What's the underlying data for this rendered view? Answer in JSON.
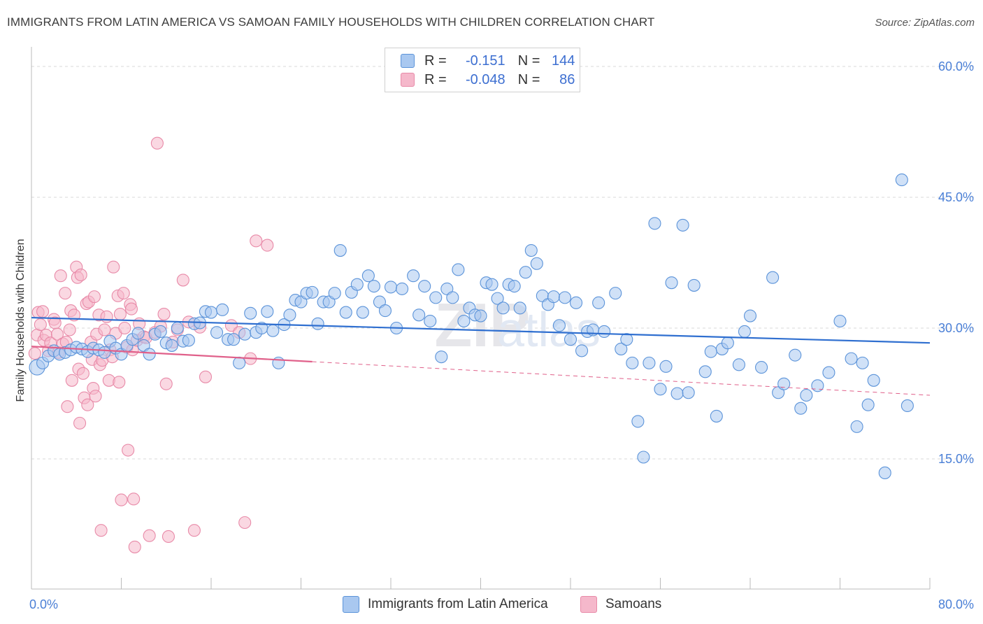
{
  "title": "IMMIGRANTS FROM LATIN AMERICA VS SAMOAN FAMILY HOUSEHOLDS WITH CHILDREN CORRELATION CHART",
  "source": "Source: ZipAtlas.com",
  "watermark": "ZIPatlas",
  "legend": {
    "rows": [
      {
        "r_label": "R =",
        "r_value": "-0.151",
        "n_label": "N =",
        "n_value": "144"
      },
      {
        "r_label": "R =",
        "r_value": "-0.048",
        "n_label": "N =",
        "n_value": "86"
      }
    ]
  },
  "bottom_legend": [
    "Immigrants from Latin America",
    "Samoans"
  ],
  "colors": {
    "blue_fill": "#a9c8f0",
    "blue_stroke": "#5b93d9",
    "blue_line": "#2f6fd0",
    "pink_fill": "#f5b8cb",
    "pink_stroke": "#e88aa8",
    "pink_line": "#e0608a",
    "tick_text": "#4a7fd6",
    "grid": "#d8d8d8"
  },
  "chart_data": {
    "type": "scatter",
    "ylabel": "Family Households with Children",
    "xlim": [
      0,
      80
    ],
    "ylim": [
      0,
      60
    ],
    "x_ticks": [
      "0.0%",
      "80.0%"
    ],
    "y_ticks": [
      {
        "value": 60,
        "label": "60.0%"
      },
      {
        "value": 45,
        "label": "45.0%"
      },
      {
        "value": 30,
        "label": "30.0%"
      },
      {
        "value": 15,
        "label": "15.0%"
      }
    ],
    "series": [
      {
        "name": "Immigrants from Latin America",
        "color": "blue",
        "trend": {
          "x0": 0,
          "y0": 31.2,
          "x1": 80,
          "y1": 28.3,
          "solid_to": 80
        },
        "points": [
          [
            0.5,
            25.5
          ],
          [
            1,
            26
          ],
          [
            1.5,
            26.8
          ],
          [
            2,
            27.4
          ],
          [
            2.5,
            27
          ],
          [
            3,
            27.2
          ],
          [
            3.5,
            27.5
          ],
          [
            4,
            27.8
          ],
          [
            4.5,
            27.6
          ],
          [
            5,
            27.3
          ],
          [
            5.5,
            27.7
          ],
          [
            6,
            27.5
          ],
          [
            6.5,
            27.2
          ],
          [
            7,
            28.5
          ],
          [
            7.5,
            27.7
          ],
          [
            8,
            27
          ],
          [
            8.5,
            28
          ],
          [
            9,
            28.7
          ],
          [
            9.5,
            29.4
          ],
          [
            10,
            28
          ],
          [
            10.5,
            27
          ],
          [
            11,
            29.3
          ],
          [
            11.5,
            29.6
          ],
          [
            12,
            28.3
          ],
          [
            12.5,
            28
          ],
          [
            13,
            30
          ],
          [
            13.5,
            28.5
          ],
          [
            14,
            28.6
          ],
          [
            14.5,
            30.5
          ],
          [
            15,
            30.6
          ],
          [
            15.5,
            31.9
          ],
          [
            16,
            31.8
          ],
          [
            16.5,
            29.5
          ],
          [
            17,
            32.1
          ],
          [
            17.5,
            28.7
          ],
          [
            18,
            28.7
          ],
          [
            18.5,
            26
          ],
          [
            19,
            29.3
          ],
          [
            19.5,
            31.7
          ],
          [
            20,
            29.5
          ],
          [
            20.5,
            30
          ],
          [
            21,
            31.9
          ],
          [
            21.5,
            29.7
          ],
          [
            22,
            26
          ],
          [
            22.5,
            30.4
          ],
          [
            23,
            31.5
          ],
          [
            23.5,
            33.2
          ],
          [
            24,
            33
          ],
          [
            24.5,
            34
          ],
          [
            25,
            34.1
          ],
          [
            25.5,
            30.5
          ],
          [
            26,
            33
          ],
          [
            26.5,
            33
          ],
          [
            27,
            34
          ],
          [
            27.5,
            38.9
          ],
          [
            28,
            31.8
          ],
          [
            28.5,
            34.1
          ],
          [
            29,
            35
          ],
          [
            29.5,
            31.8
          ],
          [
            30,
            36
          ],
          [
            30.5,
            34.8
          ],
          [
            31,
            33
          ],
          [
            31.5,
            32
          ],
          [
            32,
            34.7
          ],
          [
            32.5,
            30
          ],
          [
            33,
            34.5
          ],
          [
            34,
            36
          ],
          [
            34.5,
            31.5
          ],
          [
            35,
            34.8
          ],
          [
            35.5,
            30.8
          ],
          [
            36,
            33.5
          ],
          [
            36.5,
            26.7
          ],
          [
            37,
            34.5
          ],
          [
            37.5,
            33.5
          ],
          [
            38,
            36.7
          ],
          [
            38.5,
            30.8
          ],
          [
            39,
            32.3
          ],
          [
            39.5,
            31.5
          ],
          [
            40,
            31.4
          ],
          [
            40.5,
            35.2
          ],
          [
            41,
            35
          ],
          [
            41.5,
            33.4
          ],
          [
            42,
            32.3
          ],
          [
            42.5,
            35
          ],
          [
            43,
            34.8
          ],
          [
            43.5,
            32.3
          ],
          [
            44,
            36.4
          ],
          [
            44.5,
            38.9
          ],
          [
            45,
            37.4
          ],
          [
            45.5,
            33.7
          ],
          [
            46,
            32.7
          ],
          [
            46.5,
            33.6
          ],
          [
            47,
            30.3
          ],
          [
            47.5,
            33.5
          ],
          [
            48,
            28.7
          ],
          [
            48.5,
            32.9
          ],
          [
            49,
            27.4
          ],
          [
            49.5,
            29.6
          ],
          [
            50,
            29.8
          ],
          [
            50.5,
            32.9
          ],
          [
            51,
            29.6
          ],
          [
            52,
            34
          ],
          [
            52.5,
            27.6
          ],
          [
            53,
            28.7
          ],
          [
            53.5,
            26
          ],
          [
            54,
            19.3
          ],
          [
            54.5,
            15.2
          ],
          [
            55,
            26
          ],
          [
            55.5,
            42
          ],
          [
            56,
            23
          ],
          [
            56.5,
            25.6
          ],
          [
            57,
            35.2
          ],
          [
            57.5,
            22.5
          ],
          [
            58,
            41.8
          ],
          [
            58.5,
            22.6
          ],
          [
            59,
            34.9
          ],
          [
            60,
            25
          ],
          [
            60.5,
            27.3
          ],
          [
            61,
            19.9
          ],
          [
            61.5,
            27.6
          ],
          [
            62,
            28.3
          ],
          [
            63,
            25.8
          ],
          [
            63.5,
            29.6
          ],
          [
            64,
            31.4
          ],
          [
            65,
            25.5
          ],
          [
            66,
            35.8
          ],
          [
            66.5,
            22.6
          ],
          [
            67,
            23.6
          ],
          [
            68,
            26.9
          ],
          [
            68.5,
            20.8
          ],
          [
            69,
            22.3
          ],
          [
            70,
            23.4
          ],
          [
            71,
            24.9
          ],
          [
            72,
            30.8
          ],
          [
            73,
            26.5
          ],
          [
            73.5,
            18.7
          ],
          [
            74,
            26
          ],
          [
            74.5,
            21.2
          ],
          [
            75,
            24
          ],
          [
            76,
            13.4
          ],
          [
            77.5,
            47
          ],
          [
            78,
            21.1
          ]
        ]
      },
      {
        "name": "Samoans",
        "color": "pink",
        "trend": {
          "x0": 0,
          "y0": 27.9,
          "x1": 80,
          "y1": 22.3,
          "solid_to": 25
        },
        "points": [
          [
            0.3,
            27.1
          ],
          [
            0.5,
            29.2
          ],
          [
            0.6,
            31.8
          ],
          [
            0.8,
            30.4
          ],
          [
            1,
            31.9
          ],
          [
            1.1,
            28.6
          ],
          [
            1.3,
            29.2
          ],
          [
            1.5,
            27.4
          ],
          [
            1.7,
            28.3
          ],
          [
            2,
            31
          ],
          [
            2.1,
            30.6
          ],
          [
            2.3,
            29.3
          ],
          [
            2.4,
            27.2
          ],
          [
            2.6,
            36
          ],
          [
            2.8,
            28.2
          ],
          [
            3,
            34
          ],
          [
            3.1,
            28.4
          ],
          [
            3.2,
            21
          ],
          [
            3.4,
            29.8
          ],
          [
            3.5,
            32
          ],
          [
            3.6,
            24
          ],
          [
            3.8,
            31.5
          ],
          [
            4,
            37
          ],
          [
            4.1,
            35.8
          ],
          [
            4.2,
            25.3
          ],
          [
            4.3,
            19.1
          ],
          [
            4.4,
            36.1
          ],
          [
            4.6,
            24.8
          ],
          [
            4.7,
            22
          ],
          [
            4.9,
            32.8
          ],
          [
            5,
            21.2
          ],
          [
            5.1,
            33
          ],
          [
            5.3,
            28.4
          ],
          [
            5.4,
            26.4
          ],
          [
            5.5,
            23.1
          ],
          [
            5.6,
            33.6
          ],
          [
            5.7,
            22.2
          ],
          [
            5.8,
            29.3
          ],
          [
            6,
            31.5
          ],
          [
            6.1,
            25.8
          ],
          [
            6.2,
            6.8
          ],
          [
            6.3,
            26.3
          ],
          [
            6.5,
            29.8
          ],
          [
            6.7,
            31.3
          ],
          [
            6.9,
            24
          ],
          [
            7,
            27.5
          ],
          [
            7.2,
            26.7
          ],
          [
            7.3,
            37
          ],
          [
            7.5,
            29.4
          ],
          [
            7.7,
            33.7
          ],
          [
            7.8,
            23.8
          ],
          [
            7.9,
            31.6
          ],
          [
            8,
            10.3
          ],
          [
            8.2,
            34
          ],
          [
            8.3,
            30
          ],
          [
            8.5,
            27.8
          ],
          [
            8.6,
            16
          ],
          [
            8.8,
            32.7
          ],
          [
            8.9,
            32.2
          ],
          [
            9,
            27.5
          ],
          [
            9.1,
            10.4
          ],
          [
            9.2,
            4.9
          ],
          [
            9.4,
            28.6
          ],
          [
            9.6,
            30.5
          ],
          [
            10,
            29
          ],
          [
            10.2,
            28.9
          ],
          [
            10.5,
            6.2
          ],
          [
            11,
            29.5
          ],
          [
            11.2,
            51.2
          ],
          [
            11.5,
            30.2
          ],
          [
            11.8,
            31.6
          ],
          [
            12,
            23.6
          ],
          [
            12.2,
            6.1
          ],
          [
            12.6,
            28.4
          ],
          [
            13,
            29.8
          ],
          [
            13.5,
            35.5
          ],
          [
            14,
            30.7
          ],
          [
            14.5,
            6.8
          ],
          [
            15,
            30.1
          ],
          [
            15.5,
            24.4
          ],
          [
            17.8,
            30.3
          ],
          [
            18.5,
            29.5
          ],
          [
            19,
            7.7
          ],
          [
            19.5,
            26.5
          ],
          [
            20,
            40
          ],
          [
            21,
            39.5
          ]
        ]
      }
    ]
  }
}
